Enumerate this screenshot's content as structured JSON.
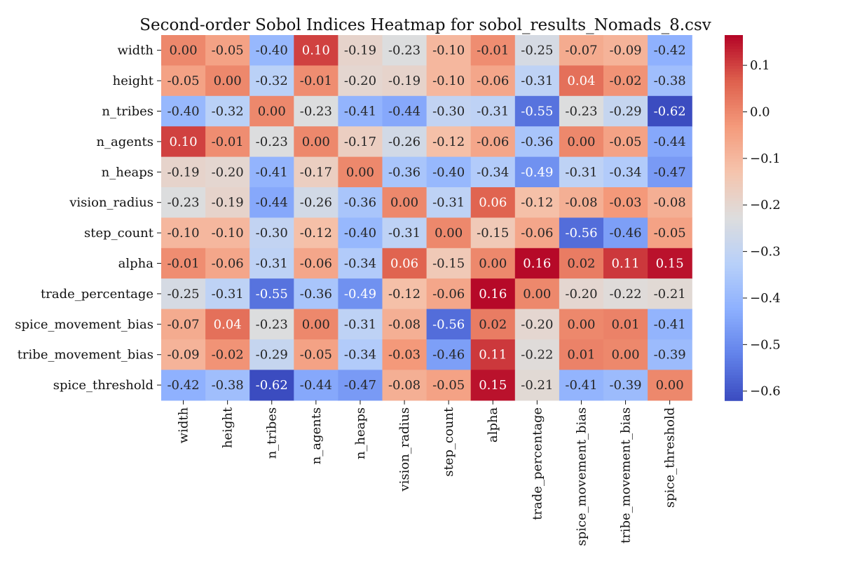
{
  "chart_data": {
    "type": "heatmap",
    "title": "Second-order Sobol Indices Heatmap for sobol_results_Nomads_8.csv",
    "row_labels": [
      "width",
      "height",
      "n_tribes",
      "n_agents",
      "n_heaps",
      "vision_radius",
      "step_count",
      "alpha",
      "trade_percentage",
      "spice_movement_bias",
      "tribe_movement_bias",
      "spice_threshold"
    ],
    "col_labels": [
      "width",
      "height",
      "n_tribes",
      "n_agents",
      "n_heaps",
      "vision_radius",
      "step_count",
      "alpha",
      "trade_percentage",
      "spice_movement_bias",
      "tribe_movement_bias",
      "spice_threshold"
    ],
    "values": [
      [
        0.0,
        -0.05,
        -0.4,
        0.1,
        -0.19,
        -0.23,
        -0.1,
        -0.01,
        -0.25,
        -0.07,
        -0.09,
        -0.42
      ],
      [
        -0.05,
        0.0,
        -0.32,
        -0.01,
        -0.2,
        -0.19,
        -0.1,
        -0.06,
        -0.31,
        0.04,
        -0.02,
        -0.38
      ],
      [
        -0.4,
        -0.32,
        0.0,
        -0.23,
        -0.41,
        -0.44,
        -0.3,
        -0.31,
        -0.55,
        -0.23,
        -0.29,
        -0.62
      ],
      [
        0.1,
        -0.01,
        -0.23,
        0.0,
        -0.17,
        -0.26,
        -0.12,
        -0.06,
        -0.36,
        0.0,
        -0.05,
        -0.44
      ],
      [
        -0.19,
        -0.2,
        -0.41,
        -0.17,
        0.0,
        -0.36,
        -0.4,
        -0.34,
        -0.49,
        -0.31,
        -0.34,
        -0.47
      ],
      [
        -0.23,
        -0.19,
        -0.44,
        -0.26,
        -0.36,
        0.0,
        -0.31,
        0.06,
        -0.12,
        -0.08,
        -0.03,
        -0.08
      ],
      [
        -0.1,
        -0.1,
        -0.3,
        -0.12,
        -0.4,
        -0.31,
        0.0,
        -0.15,
        -0.06,
        -0.56,
        -0.46,
        -0.05
      ],
      [
        -0.01,
        -0.06,
        -0.31,
        -0.06,
        -0.34,
        0.06,
        -0.15,
        0.0,
        0.16,
        0.02,
        0.11,
        0.15
      ],
      [
        -0.25,
        -0.31,
        -0.55,
        -0.36,
        -0.49,
        -0.12,
        -0.06,
        0.16,
        0.0,
        -0.2,
        -0.22,
        -0.21
      ],
      [
        -0.07,
        0.04,
        -0.23,
        0.0,
        -0.31,
        -0.08,
        -0.56,
        0.02,
        -0.2,
        0.0,
        0.01,
        -0.41
      ],
      [
        -0.09,
        -0.02,
        -0.29,
        -0.05,
        -0.34,
        -0.03,
        -0.46,
        0.11,
        -0.22,
        0.01,
        0.0,
        -0.39
      ],
      [
        -0.42,
        -0.38,
        -0.62,
        -0.44,
        -0.47,
        -0.08,
        -0.05,
        0.15,
        -0.21,
        -0.41,
        -0.39,
        0.0
      ]
    ],
    "colormap": "coolwarm",
    "vmin": -0.62,
    "vmax": 0.165,
    "colorbar_ticks": [
      "0.1",
      "0.0",
      "−0.1",
      "−0.2",
      "−0.3",
      "−0.4",
      "−0.5",
      "−0.6"
    ],
    "colorbar_tick_values": [
      0.1,
      0.0,
      -0.1,
      -0.2,
      -0.3,
      -0.4,
      -0.5,
      -0.6
    ]
  }
}
